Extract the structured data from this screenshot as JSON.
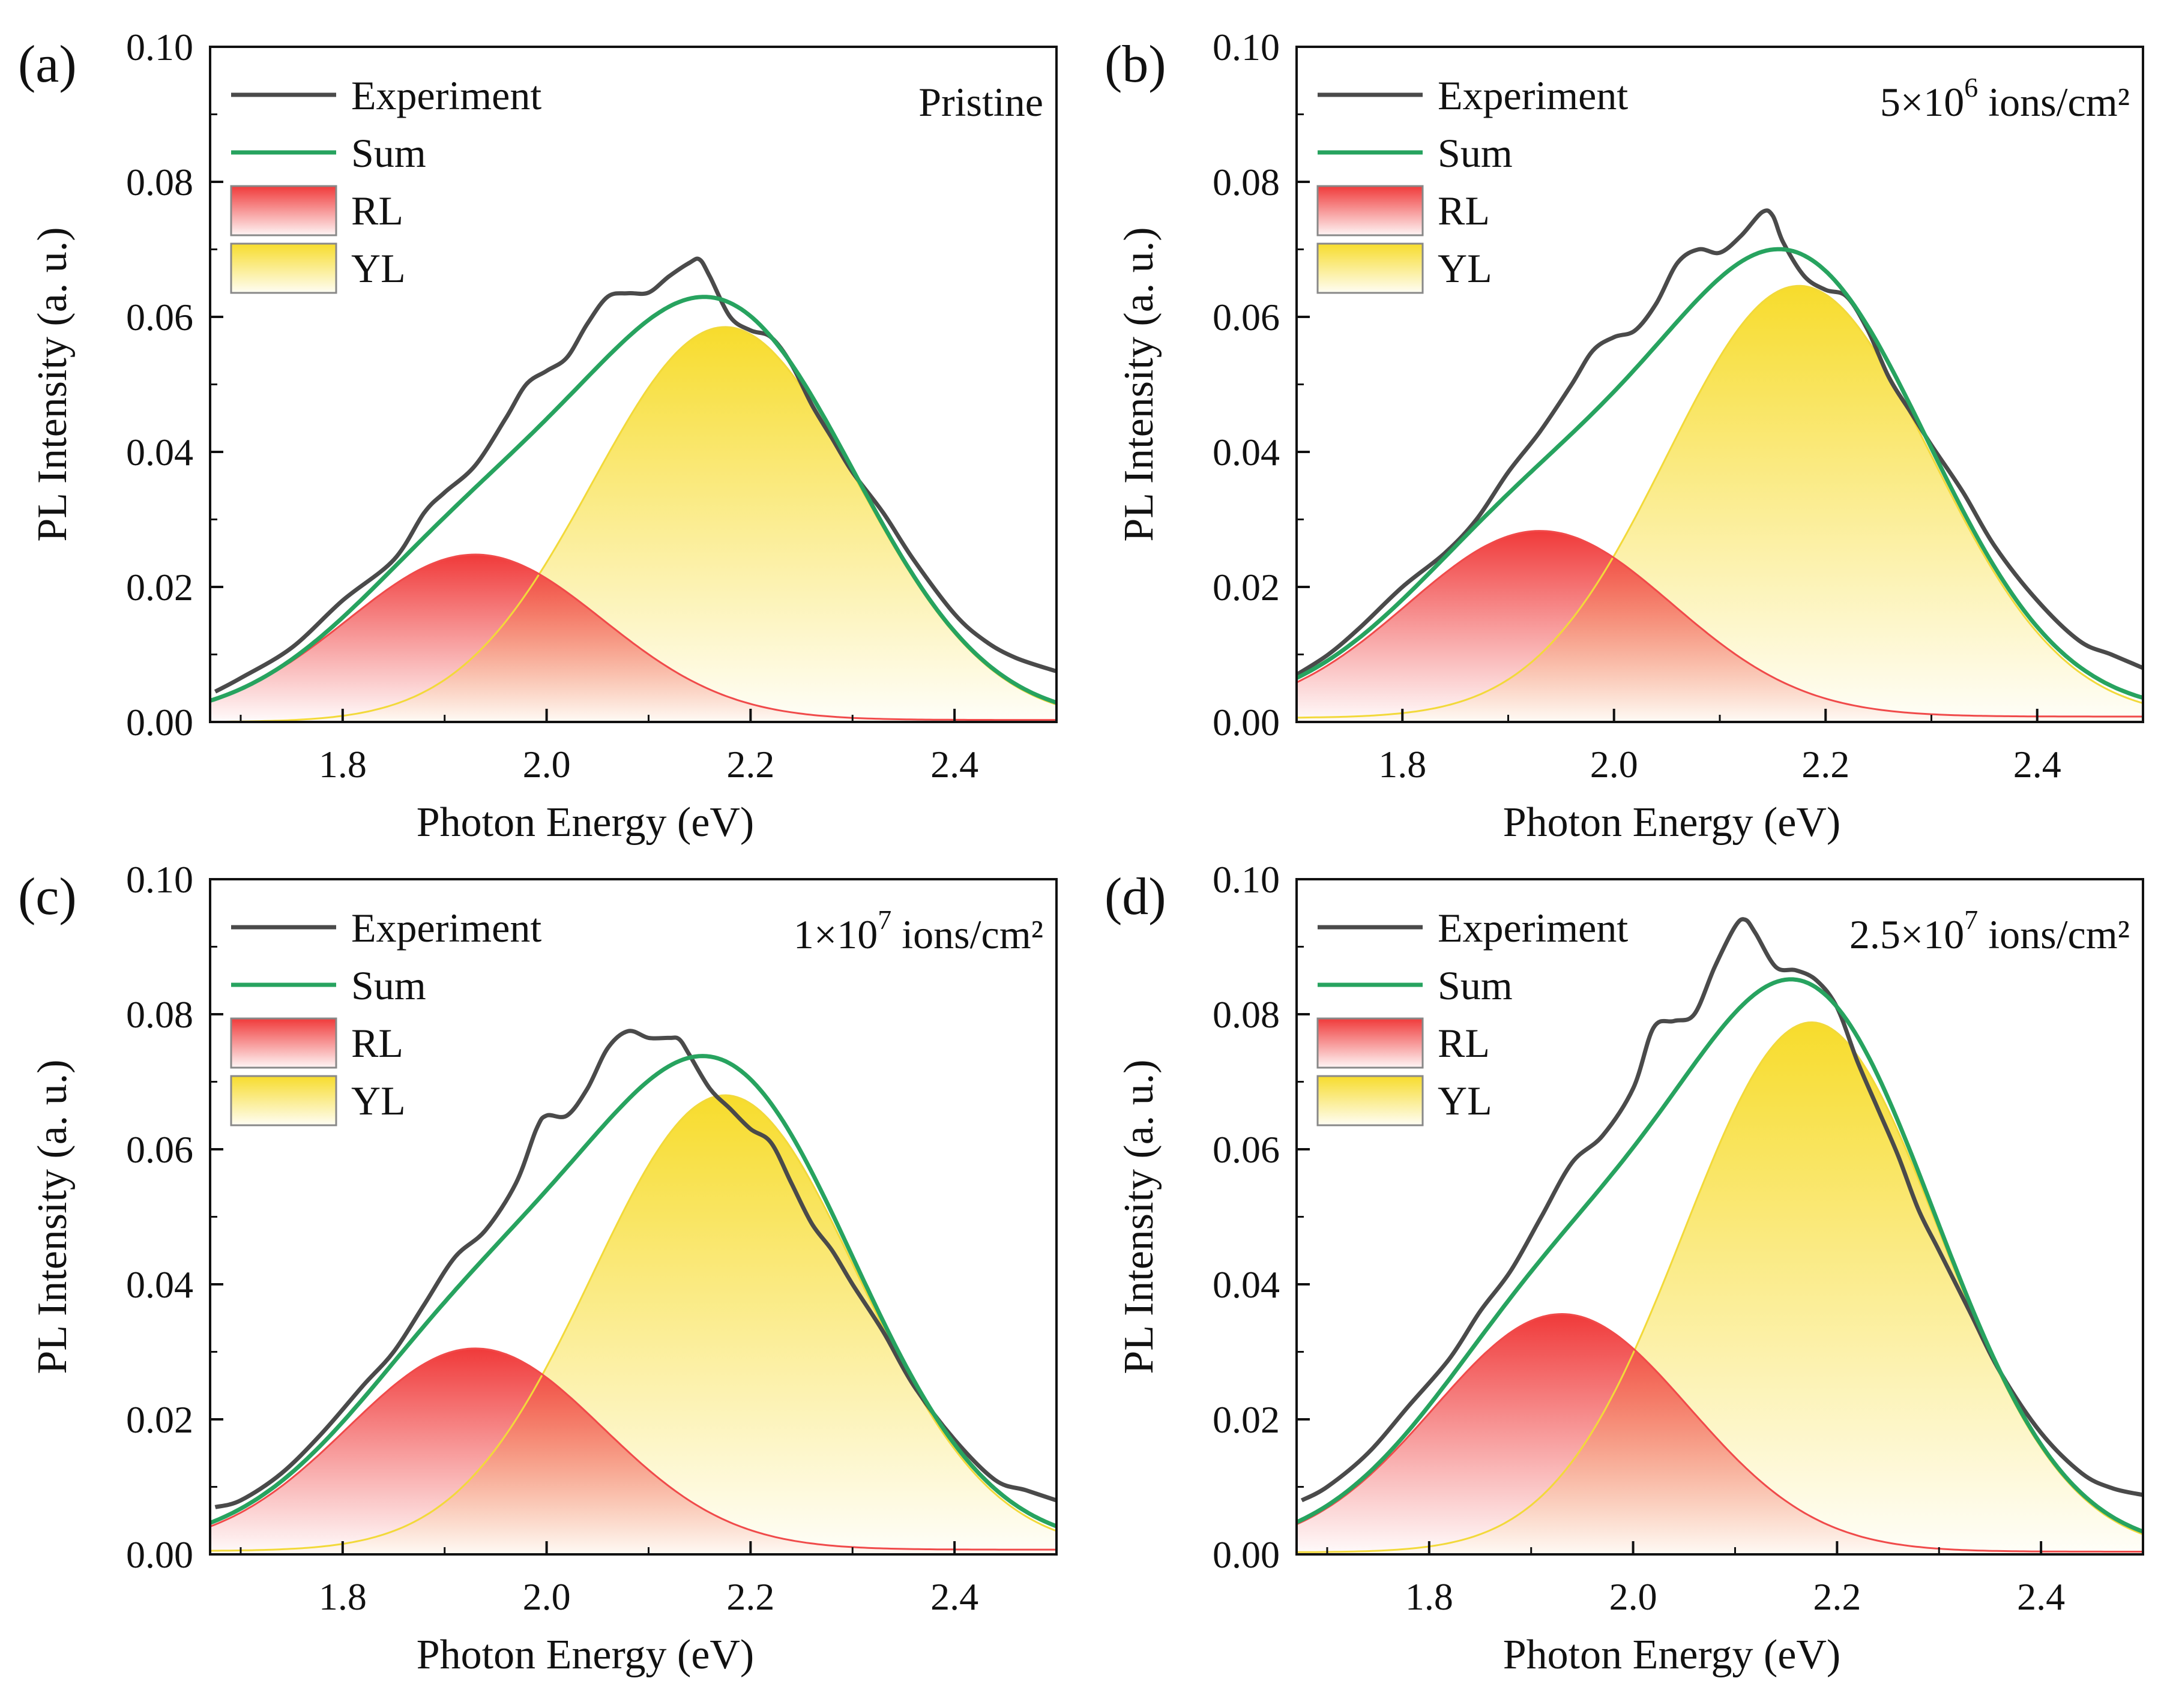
{
  "colors": {
    "experiment": "#4a4a4a",
    "sum": "#27a35f",
    "rl_line": "#f04a4a",
    "rl_fill": "#f03a3a",
    "yl_line": "#f2d93a",
    "yl_fill": "#f7dc2c",
    "axis": "#111111"
  },
  "chart_data": [
    {
      "type": "line",
      "panel_label": "(a)",
      "annotation": {
        "prefix": "Pristine",
        "sup": "",
        "suffix": ""
      },
      "xlabel": "Photon Energy (eV)",
      "ylabel": "PL Intensity (a. u.)",
      "xlim": [
        1.67,
        2.5
      ],
      "ylim": [
        0.0,
        0.1
      ],
      "xticks": [
        1.8,
        2.0,
        2.2,
        2.4
      ],
      "xtick_labels": [
        "1.8",
        "2.0",
        "2.2",
        "2.4"
      ],
      "yticks": [
        0.0,
        0.02,
        0.04,
        0.06,
        0.08,
        0.1
      ],
      "ytick_labels": [
        "0.00",
        "0.02",
        "0.04",
        "0.06",
        "0.08",
        "0.10"
      ],
      "legend": [
        "Experiment",
        "Sum",
        "RL",
        "YL"
      ],
      "legend_position": "top-left",
      "rl_peak": {
        "center": 1.93,
        "amplitude": 0.0245,
        "sigma": 0.125,
        "offset": 0.0003
      },
      "yl_peak": {
        "center": 2.175,
        "amplitude": 0.0585,
        "sigma": 0.13,
        "offset": 0.0
      },
      "experiment_x": [
        1.675,
        1.7,
        1.75,
        1.8,
        1.85,
        1.88,
        1.9,
        1.93,
        1.96,
        1.98,
        2.0,
        2.02,
        2.04,
        2.06,
        2.08,
        2.1,
        2.12,
        2.14,
        2.15,
        2.16,
        2.18,
        2.2,
        2.22,
        2.24,
        2.26,
        2.28,
        2.3,
        2.33,
        2.36,
        2.4,
        2.43,
        2.46,
        2.5
      ],
      "experiment_y": [
        0.0045,
        0.0065,
        0.011,
        0.018,
        0.024,
        0.031,
        0.034,
        0.038,
        0.045,
        0.05,
        0.052,
        0.054,
        0.059,
        0.063,
        0.0635,
        0.0636,
        0.066,
        0.068,
        0.0685,
        0.066,
        0.06,
        0.058,
        0.057,
        0.053,
        0.047,
        0.042,
        0.037,
        0.031,
        0.024,
        0.016,
        0.012,
        0.0095,
        0.0075
      ]
    },
    {
      "type": "line",
      "panel_label": "(b)",
      "annotation": {
        "prefix": "5×10",
        "sup": "6",
        "suffix": " ions/cm²"
      },
      "xlabel": "Photon Energy (eV)",
      "ylabel": "PL Intensity (a. u.)",
      "xlim": [
        1.7,
        2.5
      ],
      "ylim": [
        0.0,
        0.1
      ],
      "xticks": [
        1.8,
        2.0,
        2.2,
        2.4
      ],
      "xtick_labels": [
        "1.8",
        "2.0",
        "2.2",
        "2.4"
      ],
      "yticks": [
        0.0,
        0.02,
        0.04,
        0.06,
        0.08,
        0.1
      ],
      "ytick_labels": [
        "0.00",
        "0.02",
        "0.04",
        "0.06",
        "0.08",
        "0.10"
      ],
      "legend": [
        "Experiment",
        "Sum",
        "RL",
        "YL"
      ],
      "legend_position": "top-left",
      "rl_peak": {
        "center": 1.93,
        "amplitude": 0.0275,
        "sigma": 0.125,
        "offset": 0.0008
      },
      "yl_peak": {
        "center": 2.175,
        "amplitude": 0.064,
        "sigma": 0.125,
        "offset": 0.0006
      },
      "experiment_x": [
        1.7,
        1.73,
        1.76,
        1.8,
        1.84,
        1.87,
        1.9,
        1.93,
        1.96,
        1.98,
        2.0,
        2.02,
        2.04,
        2.06,
        2.08,
        2.1,
        2.12,
        2.14,
        2.15,
        2.16,
        2.18,
        2.2,
        2.22,
        2.24,
        2.26,
        2.28,
        2.3,
        2.33,
        2.36,
        2.4,
        2.44,
        2.47,
        2.5
      ],
      "experiment_y": [
        0.007,
        0.01,
        0.014,
        0.02,
        0.025,
        0.03,
        0.037,
        0.043,
        0.05,
        0.055,
        0.057,
        0.058,
        0.062,
        0.068,
        0.07,
        0.0695,
        0.072,
        0.0755,
        0.075,
        0.071,
        0.066,
        0.064,
        0.063,
        0.058,
        0.051,
        0.046,
        0.041,
        0.034,
        0.026,
        0.018,
        0.012,
        0.01,
        0.008
      ]
    },
    {
      "type": "line",
      "panel_label": "(c)",
      "annotation": {
        "prefix": "1×10",
        "sup": "7",
        "suffix": " ions/cm²"
      },
      "xlabel": "Photon Energy (eV)",
      "ylabel": "PL Intensity (a. u.)",
      "xlim": [
        1.67,
        2.5
      ],
      "ylim": [
        0.0,
        0.1
      ],
      "xticks": [
        1.8,
        2.0,
        2.2,
        2.4
      ],
      "xtick_labels": [
        "1.8",
        "2.0",
        "2.2",
        "2.4"
      ],
      "yticks": [
        0.0,
        0.02,
        0.04,
        0.06,
        0.08,
        0.1
      ],
      "ytick_labels": [
        "0.00",
        "0.02",
        "0.04",
        "0.06",
        "0.08",
        "0.10"
      ],
      "legend": [
        "Experiment",
        "Sum",
        "RL",
        "YL"
      ],
      "legend_position": "top-left",
      "rl_peak": {
        "center": 1.93,
        "amplitude": 0.0298,
        "sigma": 0.125,
        "offset": 0.0007
      },
      "yl_peak": {
        "center": 2.175,
        "amplitude": 0.0675,
        "sigma": 0.13,
        "offset": 0.0005
      },
      "experiment_x": [
        1.675,
        1.7,
        1.74,
        1.78,
        1.82,
        1.85,
        1.88,
        1.91,
        1.94,
        1.97,
        1.99,
        2.0,
        2.02,
        2.04,
        2.06,
        2.08,
        2.1,
        2.12,
        2.13,
        2.14,
        2.16,
        2.18,
        2.2,
        2.22,
        2.24,
        2.26,
        2.28,
        2.3,
        2.33,
        2.36,
        2.4,
        2.44,
        2.47,
        2.5
      ],
      "experiment_y": [
        0.007,
        0.008,
        0.012,
        0.018,
        0.025,
        0.03,
        0.037,
        0.044,
        0.048,
        0.055,
        0.063,
        0.065,
        0.065,
        0.069,
        0.075,
        0.0775,
        0.0765,
        0.0765,
        0.0763,
        0.074,
        0.069,
        0.066,
        0.063,
        0.061,
        0.055,
        0.049,
        0.045,
        0.04,
        0.033,
        0.025,
        0.017,
        0.011,
        0.0095,
        0.008
      ]
    },
    {
      "type": "line",
      "panel_label": "(d)",
      "annotation": {
        "prefix": "2.5×10",
        "sup": "7",
        "suffix": " ions/cm²"
      },
      "xlabel": "Photon Energy (eV)",
      "ylabel": "PL Intensity (a. u.)",
      "xlim": [
        1.67,
        2.5
      ],
      "ylim": [
        0.0,
        0.1
      ],
      "xticks": [
        1.8,
        2.0,
        2.2,
        2.4
      ],
      "xtick_labels": [
        "1.8",
        "2.0",
        "2.2",
        "2.4"
      ],
      "yticks": [
        0.0,
        0.02,
        0.04,
        0.06,
        0.08,
        0.1
      ],
      "ytick_labels": [
        "0.00",
        "0.02",
        "0.04",
        "0.06",
        "0.08",
        "0.10"
      ],
      "legend": [
        "Experiment",
        "Sum",
        "RL",
        "YL"
      ],
      "legend_position": "top-left",
      "rl_peak": {
        "center": 1.93,
        "amplitude": 0.0352,
        "sigma": 0.125,
        "offset": 0.0004
      },
      "yl_peak": {
        "center": 2.175,
        "amplitude": 0.0785,
        "sigma": 0.125,
        "offset": 0.0003
      },
      "experiment_x": [
        1.675,
        1.7,
        1.74,
        1.78,
        1.82,
        1.85,
        1.88,
        1.91,
        1.94,
        1.97,
        2.0,
        2.02,
        2.04,
        2.06,
        2.08,
        2.1,
        2.11,
        2.12,
        2.14,
        2.16,
        2.18,
        2.2,
        2.22,
        2.24,
        2.26,
        2.28,
        2.3,
        2.33,
        2.36,
        2.4,
        2.44,
        2.47,
        2.5
      ],
      "experiment_y": [
        0.008,
        0.01,
        0.015,
        0.022,
        0.029,
        0.036,
        0.042,
        0.05,
        0.058,
        0.062,
        0.069,
        0.078,
        0.079,
        0.08,
        0.087,
        0.093,
        0.094,
        0.092,
        0.087,
        0.0865,
        0.085,
        0.081,
        0.073,
        0.066,
        0.059,
        0.051,
        0.045,
        0.036,
        0.027,
        0.018,
        0.012,
        0.0098,
        0.0088
      ]
    }
  ]
}
